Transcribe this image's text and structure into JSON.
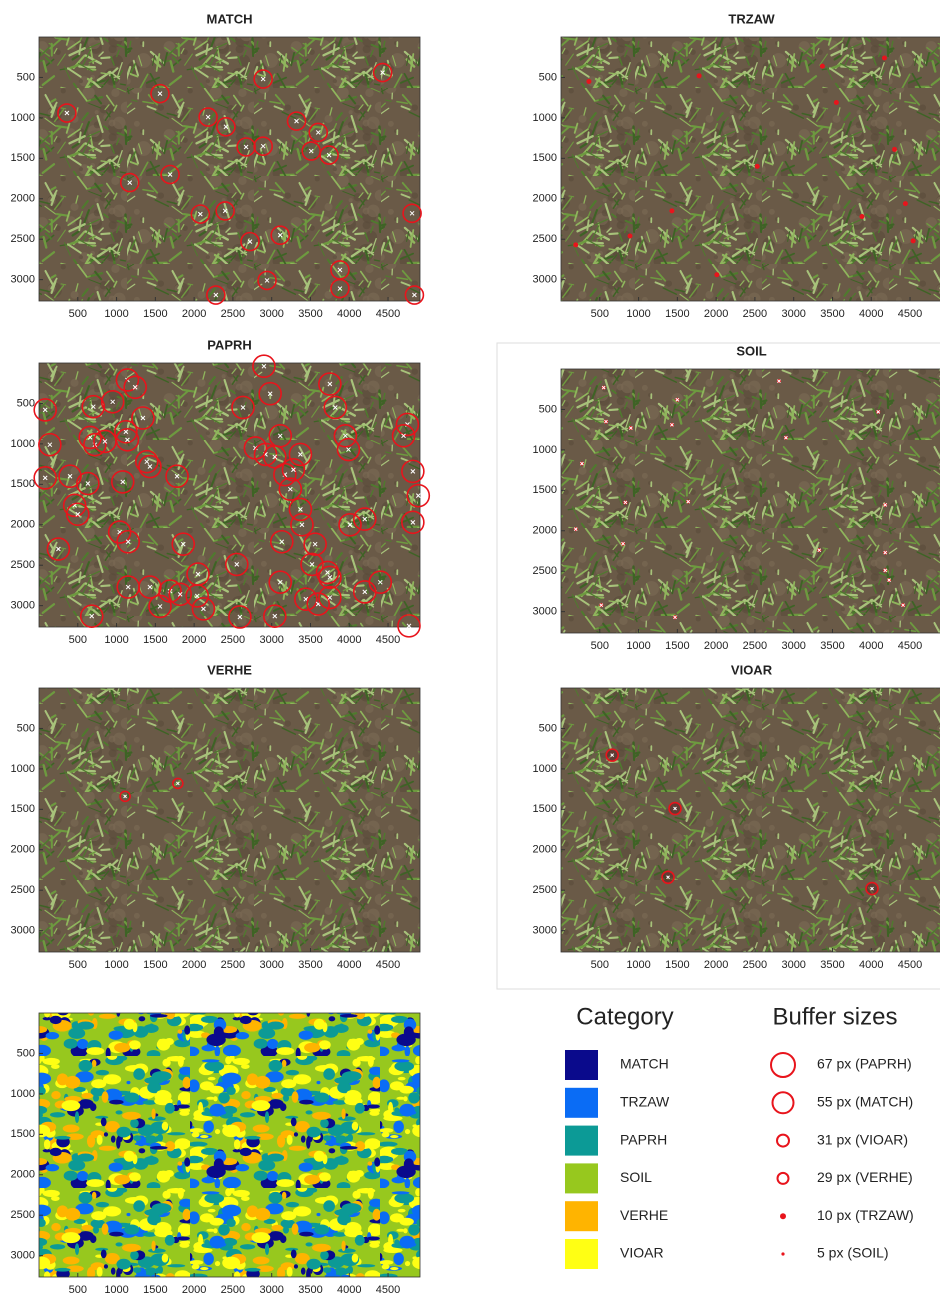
{
  "chart_data": [
    {
      "type": "scatter",
      "title": "MATCH",
      "color": "#e8141c",
      "x": [
        360,
        1560,
        2890,
        4430,
        2180,
        2410,
        3320,
        3600,
        2670,
        2890,
        3510,
        3740,
        1170,
        1690,
        2080,
        2400,
        3110,
        2720,
        4810,
        2940,
        3880,
        3880,
        2280,
        4840
      ],
      "y": [
        940,
        700,
        520,
        440,
        990,
        1110,
        1040,
        1180,
        1360,
        1350,
        1410,
        1460,
        1800,
        1700,
        2190,
        2150,
        2450,
        2530,
        2180,
        3010,
        2880,
        3110,
        3190,
        3190
      ],
      "xlim": [
        0,
        4912
      ],
      "ylim": [
        0,
        3264
      ],
      "y_reversed": true,
      "xticks": [
        500,
        1000,
        1500,
        2000,
        2500,
        3000,
        3500,
        4000,
        4500
      ],
      "yticks": [
        500,
        1000,
        1500,
        2000,
        2500,
        3000
      ]
    },
    {
      "type": "scatter",
      "title": "TRZAW",
      "color": "#e8141c",
      "x": [
        360,
        1780,
        3370,
        4170,
        3550,
        4300,
        2530,
        1430,
        4440,
        3880,
        190,
        890,
        4540,
        2010
      ],
      "y": [
        550,
        480,
        360,
        260,
        810,
        1390,
        1600,
        2150,
        2060,
        2220,
        2570,
        2460,
        2520,
        2940
      ],
      "xlim": [
        0,
        4912
      ],
      "ylim": [
        0,
        3264
      ],
      "y_reversed": true,
      "xticks": [
        500,
        1000,
        1500,
        2000,
        2500,
        3000,
        3500,
        4000,
        4500
      ],
      "yticks": [
        500,
        1000,
        1500,
        2000,
        2500,
        3000
      ]
    },
    {
      "type": "scatter",
      "title": "PAPRH",
      "color": "#e8141c",
      "x": [
        80,
        140,
        80,
        700,
        950,
        1140,
        1240,
        1120,
        1140,
        1340,
        660,
        720,
        850,
        400,
        630,
        1080,
        1390,
        1430,
        1780,
        2630,
        2980,
        2900,
        3750,
        3820,
        2790,
        2920,
        3110,
        3040,
        3370,
        3170,
        3280,
        3240,
        3950,
        3990,
        4750,
        4700,
        4820,
        4890,
        4820,
        3370,
        3390,
        3130,
        3560,
        4010,
        4200,
        460,
        500,
        250,
        1040,
        1150,
        1860,
        2550,
        3520,
        3720,
        3750,
        1150,
        1430,
        1560,
        1690,
        1820,
        2050,
        2040,
        2120,
        3110,
        3440,
        3600,
        3750,
        4200,
        4400,
        680,
        2590,
        3040,
        4770
      ],
      "y": [
        580,
        1010,
        1420,
        540,
        480,
        210,
        300,
        850,
        950,
        680,
        920,
        1010,
        970,
        1400,
        1490,
        1470,
        1220,
        1280,
        1400,
        550,
        380,
        40,
        260,
        550,
        1050,
        1130,
        900,
        1160,
        1130,
        1380,
        1320,
        1560,
        900,
        1070,
        760,
        900,
        1340,
        1640,
        1970,
        1810,
        2000,
        2210,
        2240,
        2000,
        1930,
        1760,
        1870,
        2300,
        2090,
        2210,
        2240,
        2490,
        2490,
        2590,
        2650,
        2770,
        2770,
        3010,
        2820,
        2860,
        2610,
        2880,
        3040,
        2710,
        2920,
        2980,
        2900,
        2830,
        2710,
        3130,
        3140,
        3130,
        3250
      ],
      "xlim": [
        0,
        4912
      ],
      "ylim": [
        0,
        3264
      ],
      "y_reversed": true,
      "xticks": [
        500,
        1000,
        1500,
        2000,
        2500,
        3000,
        3500,
        4000,
        4500
      ],
      "yticks": [
        500,
        1000,
        1500,
        2000,
        2500,
        3000
      ]
    },
    {
      "type": "scatter",
      "title": "SOIL",
      "color": "#e8141c",
      "x": [
        550,
        1500,
        2810,
        4090,
        580,
        900,
        1430,
        2900,
        270,
        830,
        1640,
        4180,
        190,
        800,
        3330,
        4180,
        4180,
        4230,
        520,
        1470,
        4410
      ],
      "y": [
        230,
        380,
        150,
        530,
        650,
        730,
        690,
        850,
        1170,
        1650,
        1640,
        1680,
        1980,
        2160,
        2240,
        2270,
        2490,
        2610,
        2920,
        3070,
        2920
      ],
      "xlim": [
        0,
        4912
      ],
      "ylim": [
        0,
        3264
      ],
      "y_reversed": true,
      "xticks": [
        500,
        1000,
        1500,
        2000,
        2500,
        3000,
        3500,
        4000,
        4500
      ],
      "yticks": [
        500,
        1000,
        1500,
        2000,
        2500,
        3000
      ]
    },
    {
      "type": "scatter",
      "title": "VERHE",
      "color": "#e8141c",
      "x": [
        1110,
        1790
      ],
      "y": [
        1340,
        1180
      ],
      "xlim": [
        0,
        4912
      ],
      "ylim": [
        0,
        3264
      ],
      "y_reversed": true,
      "xticks": [
        500,
        1000,
        1500,
        2000,
        2500,
        3000,
        3500,
        4000,
        4500
      ],
      "yticks": [
        500,
        1000,
        1500,
        2000,
        2500,
        3000
      ]
    },
    {
      "type": "scatter",
      "title": "VIOAR",
      "color": "#e8141c",
      "x": [
        660,
        1470,
        1380,
        4010
      ],
      "y": [
        830,
        1490,
        2340,
        2480
      ],
      "xlim": [
        0,
        4912
      ],
      "ylim": [
        0,
        3264
      ],
      "y_reversed": true,
      "xticks": [
        500,
        1000,
        1500,
        2000,
        2500,
        3000,
        3500,
        4000,
        4500
      ],
      "yticks": [
        500,
        1000,
        1500,
        2000,
        2500,
        3000
      ]
    },
    {
      "type": "image",
      "xlim": [
        0,
        4912
      ],
      "ylim": [
        0,
        3264
      ],
      "y_reversed": true,
      "xticks": [
        500,
        1000,
        1500,
        2000,
        2500,
        3000,
        3500,
        4000,
        4500
      ],
      "yticks": [
        500,
        1000,
        1500,
        2000,
        2500,
        3000
      ]
    }
  ],
  "legend": {
    "category_title": "Category",
    "categories": [
      {
        "label": "MATCH",
        "color": "#0a0a8c"
      },
      {
        "label": "TRZAW",
        "color": "#0a6cf5"
      },
      {
        "label": "PAPRH",
        "color": "#0c9a96"
      },
      {
        "label": "SOIL",
        "color": "#97c81e"
      },
      {
        "label": "VERHE",
        "color": "#ffb400"
      },
      {
        "label": "VIOAR",
        "color": "#ffff14"
      }
    ],
    "buffer_title": "Buffer sizes",
    "buffers": [
      "67 px (PAPRH)",
      "55 px (MATCH)",
      "31 px (VIOAR)",
      "29 px (VERHE)",
      "10 px (TRZAW)",
      "5 px (SOIL)"
    ]
  }
}
